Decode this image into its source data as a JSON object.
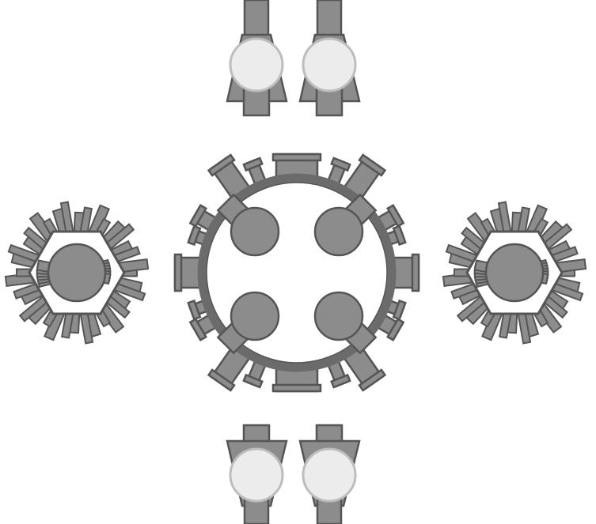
{
  "scene": {
    "background": "#ffffff",
    "palette": {
      "body": "#7a7a7a",
      "barrel": "#8c8c8c",
      "outline": "#555555",
      "ring": "#6b6b6b",
      "light_body": "#ececec",
      "light_outline": "#bdbdbd",
      "hull_fill": "#ffffff"
    },
    "entities": [
      {
        "name": "twin-tank-top-left",
        "kind": "twin-tank",
        "facing": "up"
      },
      {
        "name": "twin-tank-top-right",
        "kind": "twin-tank",
        "facing": "up"
      },
      {
        "name": "twin-tank-bottom-left",
        "kind": "twin-tank",
        "facing": "down"
      },
      {
        "name": "twin-tank-bottom-right",
        "kind": "twin-tank",
        "facing": "down"
      },
      {
        "name": "fortress-boss",
        "kind": "ring-boss",
        "turrets": 4
      },
      {
        "name": "spiked-hexagon-left",
        "kind": "spiked-hexagon"
      },
      {
        "name": "spiked-hexagon-right",
        "kind": "spiked-hexagon"
      }
    ]
  }
}
